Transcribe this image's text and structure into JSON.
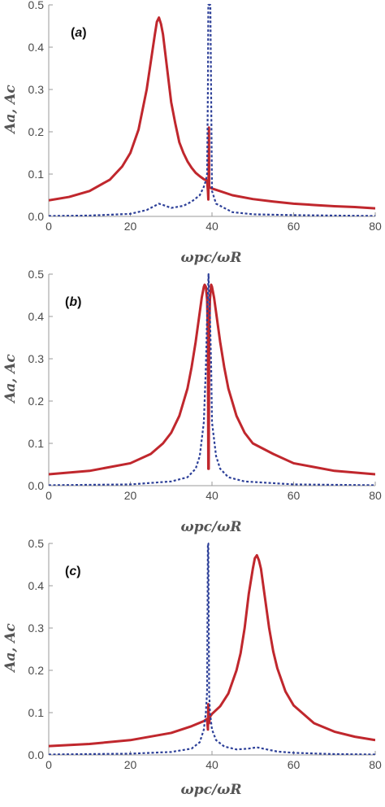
{
  "chart_data": [
    {
      "type": "line",
      "panel_label": "a",
      "xlabel": "ωpc/ωR",
      "ylabel": "Aa, Ac",
      "xlim": [
        0,
        80
      ],
      "ylim": [
        0,
        0.5
      ],
      "xticks": [
        "0",
        "20",
        "40",
        "60",
        "80"
      ],
      "yticks": [
        "0.0",
        "0.1",
        "0.2",
        "0.3",
        "0.4",
        "0.5"
      ],
      "grid": false,
      "series": [
        {
          "style": "solid",
          "color": "#c0272d",
          "x": [
            0,
            5,
            10,
            15,
            18,
            20,
            22,
            24,
            25,
            26,
            26.5,
            27,
            27.5,
            28,
            29,
            30,
            31,
            32,
            33,
            34,
            35,
            36,
            37,
            38,
            38.8,
            39,
            39.1,
            39.2,
            39.25,
            39.3,
            39.5,
            40,
            45,
            50,
            55,
            60,
            65,
            70,
            75,
            80
          ],
          "y": [
            0.038,
            0.046,
            0.06,
            0.087,
            0.118,
            0.15,
            0.205,
            0.3,
            0.365,
            0.43,
            0.46,
            0.47,
            0.455,
            0.43,
            0.35,
            0.27,
            0.22,
            0.175,
            0.15,
            0.13,
            0.115,
            0.103,
            0.095,
            0.088,
            0.085,
            0.06,
            0.04,
            0.12,
            0.21,
            0.07,
            0.068,
            0.066,
            0.05,
            0.041,
            0.035,
            0.03,
            0.027,
            0.024,
            0.022,
            0.019
          ]
        },
        {
          "style": "dashed",
          "color": "#2c3f98",
          "x": [
            0,
            10,
            20,
            24,
            26,
            27,
            28,
            30,
            33,
            35,
            37,
            38,
            38.5,
            38.8,
            39,
            39.1,
            39.3,
            39.6,
            40,
            41,
            45,
            50,
            60,
            70,
            80
          ],
          "y": [
            0.001,
            0.002,
            0.006,
            0.015,
            0.025,
            0.03,
            0.027,
            0.02,
            0.025,
            0.035,
            0.05,
            0.07,
            0.085,
            0.1,
            0.3,
            0.5,
            0.5,
            0.5,
            0.06,
            0.03,
            0.01,
            0.005,
            0.003,
            0.002,
            0.001
          ]
        }
      ]
    },
    {
      "type": "line",
      "panel_label": "b",
      "xlabel": "ωpc/ωR",
      "ylabel": "Aa, Ac",
      "xlim": [
        0,
        80
      ],
      "ylim": [
        0,
        0.5
      ],
      "xticks": [
        "0",
        "20",
        "40",
        "60",
        "80"
      ],
      "yticks": [
        "0.0",
        "0.1",
        "0.2",
        "0.3",
        "0.4",
        "0.5"
      ],
      "grid": false,
      "series": [
        {
          "style": "solid",
          "color": "#c0272d",
          "x": [
            0,
            10,
            20,
            25,
            28,
            30,
            32,
            34,
            35,
            36,
            37,
            37.5,
            38,
            38.2,
            38.5,
            38.8,
            39,
            39.1,
            39.2,
            39.3,
            39.5,
            39.8,
            40,
            40.5,
            41,
            42,
            43,
            44,
            46,
            48,
            50,
            55,
            60,
            70,
            80
          ],
          "y": [
            0.027,
            0.035,
            0.053,
            0.075,
            0.1,
            0.125,
            0.165,
            0.23,
            0.28,
            0.34,
            0.41,
            0.445,
            0.47,
            0.475,
            0.47,
            0.44,
            0.35,
            0.04,
            0.04,
            0.35,
            0.44,
            0.475,
            0.47,
            0.445,
            0.41,
            0.34,
            0.28,
            0.23,
            0.165,
            0.125,
            0.1,
            0.075,
            0.053,
            0.035,
            0.027
          ]
        },
        {
          "style": "dashed",
          "color": "#2c3f98",
          "x": [
            0,
            20,
            30,
            34,
            36,
            37,
            38,
            38.5,
            38.8,
            39,
            39.15,
            39.3,
            39.5,
            39.8,
            40,
            41,
            42,
            44,
            48,
            60,
            80
          ],
          "y": [
            0.001,
            0.003,
            0.01,
            0.02,
            0.04,
            0.07,
            0.15,
            0.28,
            0.4,
            0.45,
            0.5,
            0.45,
            0.4,
            0.28,
            0.15,
            0.07,
            0.04,
            0.02,
            0.01,
            0.003,
            0.001
          ]
        }
      ]
    },
    {
      "type": "line",
      "panel_label": "c",
      "xlabel": "ωpc/ωR",
      "ylabel": "Aa, Ac",
      "xlim": [
        0,
        80
      ],
      "ylim": [
        0,
        0.5
      ],
      "xticks": [
        "0",
        "20",
        "40",
        "60",
        "80"
      ],
      "yticks": [
        "0.0",
        "0.1",
        "0.2",
        "0.3",
        "0.4",
        "0.5"
      ],
      "grid": false,
      "series": [
        {
          "style": "solid",
          "color": "#c0272d",
          "x": [
            0,
            10,
            20,
            30,
            35,
            38,
            38.8,
            39,
            39.1,
            39.3,
            39.5,
            40,
            42,
            44,
            46,
            47,
            48,
            49,
            50,
            50.5,
            51,
            51.5,
            52,
            53,
            54,
            55,
            56,
            58,
            60,
            65,
            70,
            75,
            80
          ],
          "y": [
            0.021,
            0.026,
            0.035,
            0.052,
            0.068,
            0.08,
            0.085,
            0.06,
            0.12,
            0.075,
            0.09,
            0.097,
            0.115,
            0.145,
            0.2,
            0.24,
            0.3,
            0.38,
            0.44,
            0.465,
            0.472,
            0.46,
            0.44,
            0.37,
            0.3,
            0.245,
            0.205,
            0.15,
            0.117,
            0.075,
            0.055,
            0.043,
            0.035
          ]
        },
        {
          "style": "dashed",
          "color": "#2c3f98",
          "x": [
            0,
            10,
            20,
            30,
            35,
            37,
            38,
            38.5,
            38.8,
            39,
            39.1,
            39.3,
            39.5,
            40,
            41,
            43,
            46,
            49,
            51,
            53,
            56,
            60,
            70,
            80
          ],
          "y": [
            0.001,
            0.002,
            0.003,
            0.007,
            0.015,
            0.03,
            0.06,
            0.1,
            0.15,
            0.5,
            0.5,
            0.15,
            0.1,
            0.06,
            0.035,
            0.02,
            0.013,
            0.015,
            0.018,
            0.014,
            0.008,
            0.005,
            0.002,
            0.001
          ]
        }
      ]
    }
  ]
}
